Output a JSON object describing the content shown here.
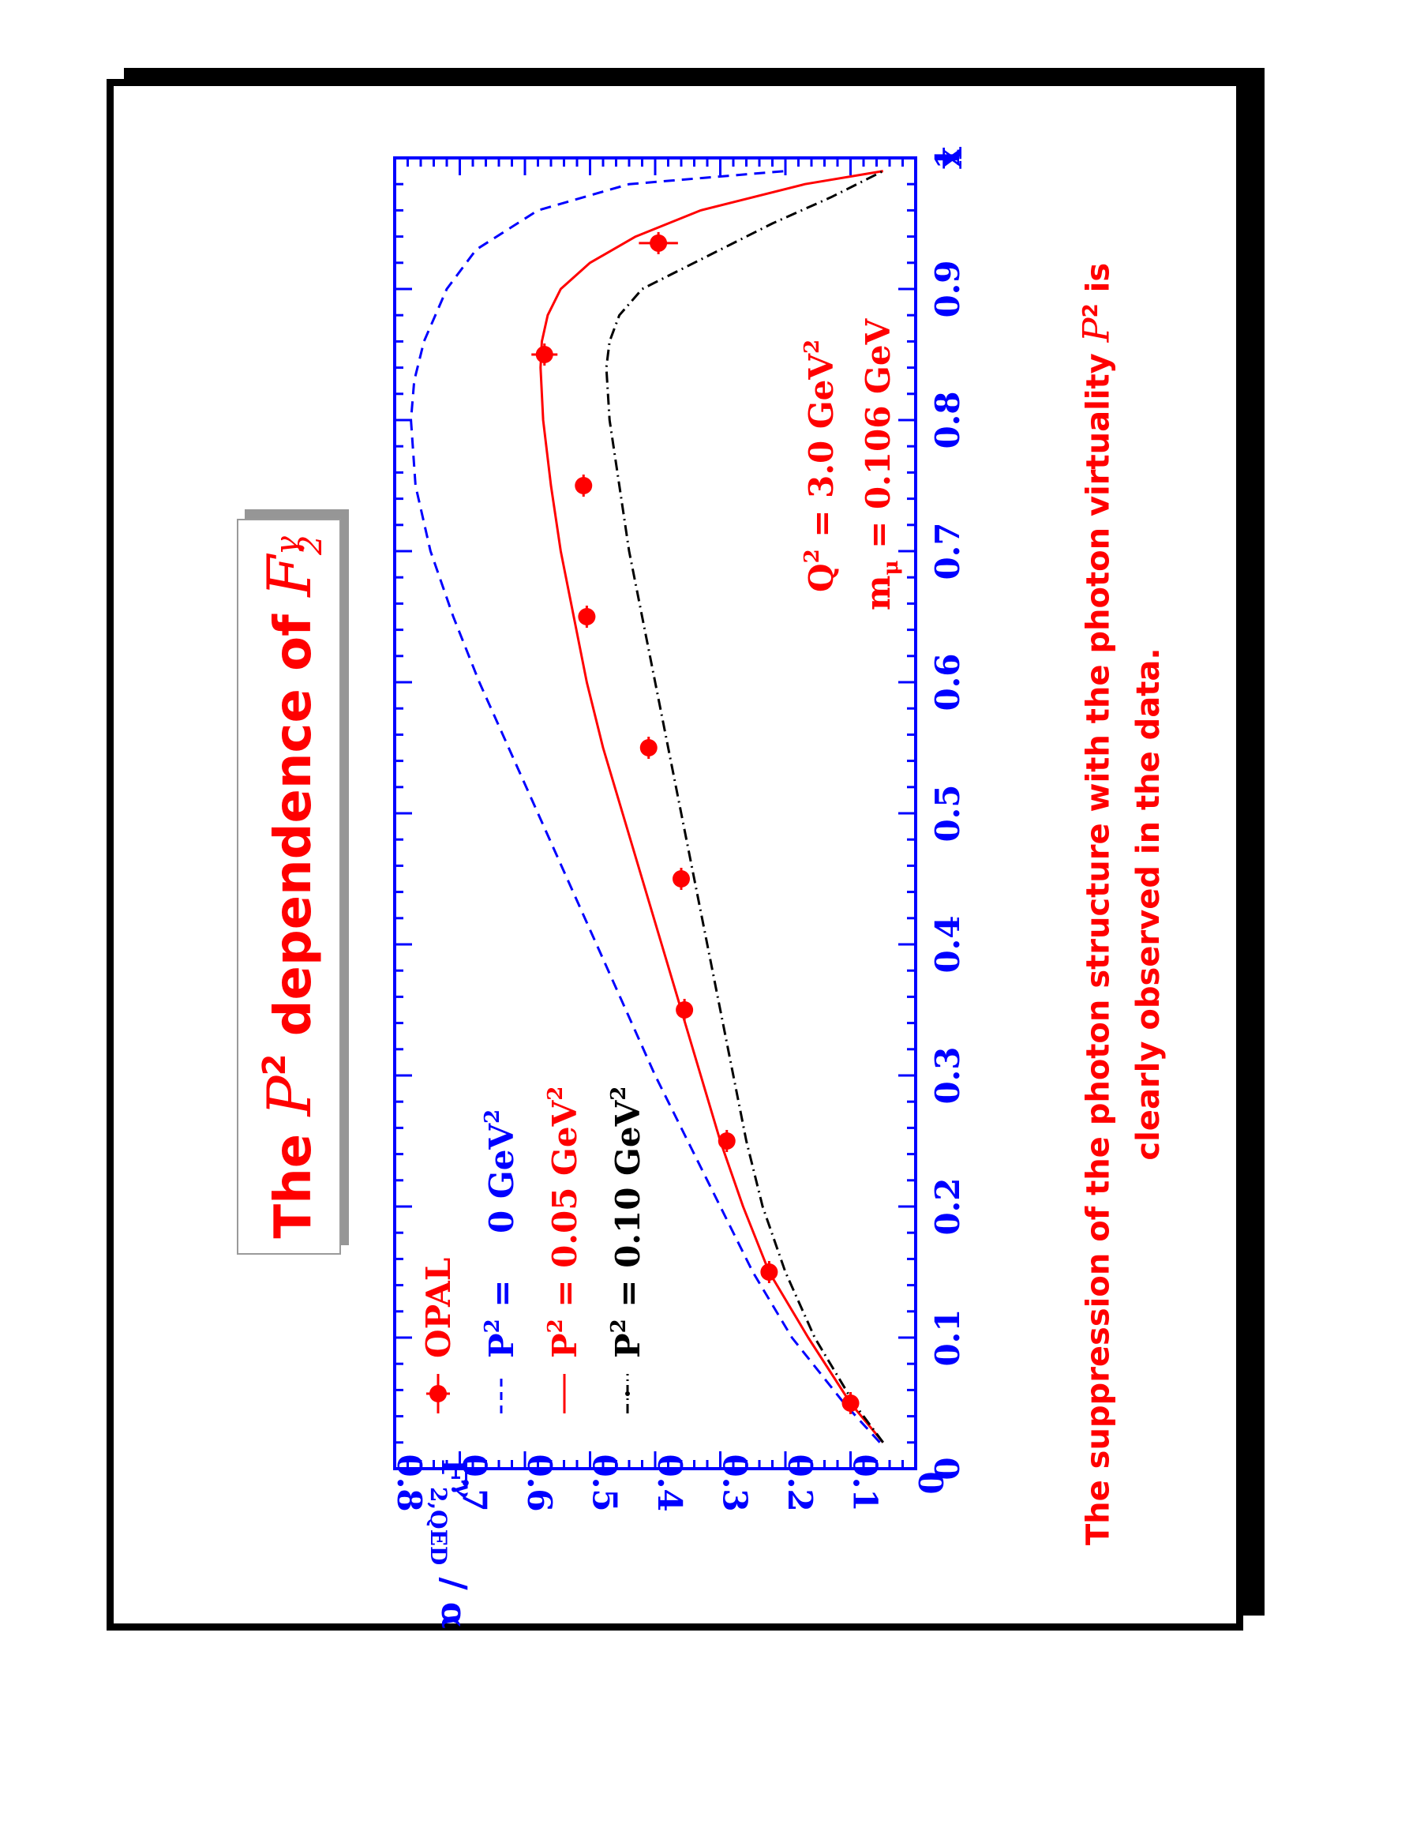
{
  "title": {
    "prefix": "The",
    "p": "P",
    "p_exp": "2",
    "mid": "dependence of",
    "f": "F",
    "f_sub": "2",
    "f_sup": "γ"
  },
  "caption": {
    "line1_pre": "The suppression of the photon structure with the photon virtuality",
    "p": "P",
    "p_exp": "2",
    "line1_post": "is",
    "line2": "clearly observed in the data."
  },
  "colors": {
    "axis": "#0000ff",
    "red": "#ff0000",
    "black": "#000000",
    "title_shadow": "#969696"
  },
  "chart_data": {
    "type": "line",
    "xlabel": "x",
    "ylabel": {
      "main": "F",
      "sup": "γ",
      "sub": "2,QED",
      "suffix": " / α"
    },
    "xlim": [
      0,
      1
    ],
    "ylim": [
      0,
      0.8
    ],
    "xticks": [
      "0",
      "0.1",
      "0.2",
      "0.3",
      "0.4",
      "0.5",
      "0.6",
      "0.7",
      "0.8",
      "0.9",
      "1"
    ],
    "yticks": [
      "0",
      "0.1",
      "0.2",
      "0.3",
      "0.4",
      "0.5",
      "0.6",
      "0.7",
      "0.8"
    ],
    "annotation": {
      "line1": "Q",
      "line1_exp": "2",
      "line1_val": " = 3.0 GeV",
      "line1_unit_exp": "2",
      "line2": "m",
      "line2_sub": "μ",
      "line2_val": " = 0.106 GeV"
    },
    "legend": [
      {
        "key": "opal",
        "label": "OPAL",
        "color": "#ff0000"
      },
      {
        "key": "p0",
        "label_pre": "P",
        "label_exp": "2",
        "label_val": " =    0 GeV",
        "label_unit_exp": "2",
        "color": "#0000ff"
      },
      {
        "key": "p005",
        "label_pre": "P",
        "label_exp": "2",
        "label_val": " = 0.05 GeV",
        "label_unit_exp": "2",
        "color": "#ff0000"
      },
      {
        "key": "p010",
        "label_pre": "P",
        "label_exp": "2",
        "label_val": " = 0.10 GeV",
        "label_unit_exp": "2",
        "color": "#000000"
      }
    ],
    "series": [
      {
        "key": "p0",
        "style": "dashed",
        "color": "#0000ff",
        "x": [
          0.02,
          0.05,
          0.1,
          0.15,
          0.2,
          0.25,
          0.3,
          0.35,
          0.4,
          0.45,
          0.5,
          0.55,
          0.6,
          0.65,
          0.7,
          0.75,
          0.8,
          0.83,
          0.86,
          0.9,
          0.93,
          0.96,
          0.98,
          0.99
        ],
        "y": [
          0.055,
          0.11,
          0.19,
          0.25,
          0.3,
          0.35,
          0.4,
          0.445,
          0.49,
          0.535,
          0.58,
          0.625,
          0.67,
          0.71,
          0.745,
          0.768,
          0.775,
          0.77,
          0.755,
          0.72,
          0.675,
          0.58,
          0.44,
          0.2
        ]
      },
      {
        "key": "p005",
        "style": "solid",
        "color": "#ff0000",
        "x": [
          0.02,
          0.05,
          0.1,
          0.15,
          0.2,
          0.25,
          0.3,
          0.35,
          0.4,
          0.45,
          0.5,
          0.55,
          0.6,
          0.65,
          0.7,
          0.75,
          0.8,
          0.84,
          0.86,
          0.88,
          0.9,
          0.92,
          0.94,
          0.96,
          0.98,
          0.99
        ],
        "y": [
          0.05,
          0.1,
          0.165,
          0.225,
          0.265,
          0.3,
          0.33,
          0.36,
          0.39,
          0.42,
          0.45,
          0.48,
          0.505,
          0.525,
          0.545,
          0.56,
          0.572,
          0.576,
          0.574,
          0.565,
          0.545,
          0.5,
          0.43,
          0.33,
          0.17,
          0.05
        ]
      },
      {
        "key": "p010",
        "style": "dashdot",
        "color": "#000000",
        "x": [
          0.02,
          0.05,
          0.1,
          0.15,
          0.2,
          0.25,
          0.3,
          0.35,
          0.4,
          0.45,
          0.5,
          0.55,
          0.6,
          0.65,
          0.7,
          0.75,
          0.8,
          0.84,
          0.86,
          0.88,
          0.9,
          0.91,
          0.93,
          0.95,
          0.97,
          0.99
        ],
        "y": [
          0.05,
          0.095,
          0.155,
          0.2,
          0.235,
          0.26,
          0.28,
          0.3,
          0.32,
          0.34,
          0.36,
          0.38,
          0.4,
          0.42,
          0.44,
          0.455,
          0.47,
          0.475,
          0.47,
          0.455,
          0.42,
          0.38,
          0.3,
          0.22,
          0.13,
          0.05
        ]
      }
    ],
    "opal": {
      "x": [
        0.05,
        0.15,
        0.25,
        0.35,
        0.45,
        0.55,
        0.65,
        0.75,
        0.85,
        0.935
      ],
      "y": [
        0.1,
        0.225,
        0.29,
        0.355,
        0.36,
        0.41,
        0.505,
        0.51,
        0.57,
        0.395
      ],
      "err": [
        0.004,
        0.006,
        0.007,
        0.008,
        0.008,
        0.009,
        0.013,
        0.013,
        0.02,
        0.03
      ]
    }
  }
}
